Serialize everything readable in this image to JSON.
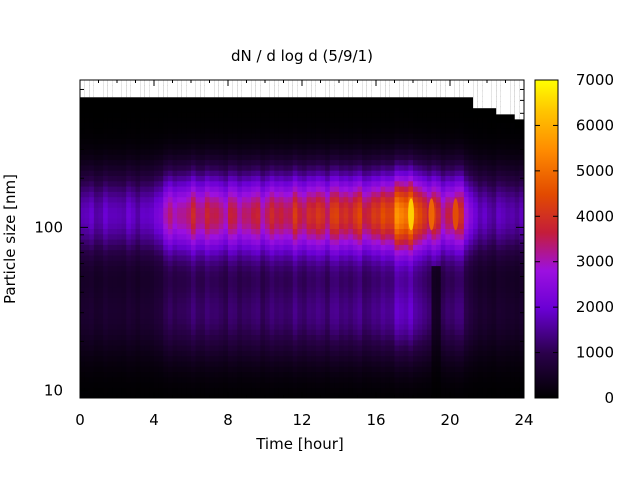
{
  "chart_data": {
    "type": "heatmap",
    "title": "dN / d log d (5/9/1)",
    "xlabel": "Time [hour]",
    "ylabel": "Particle size [nm]",
    "x_ticks": [
      0,
      4,
      8,
      12,
      16,
      20,
      24
    ],
    "y_ticks": [
      10,
      100
    ],
    "y_scale": "log",
    "xlim": [
      0,
      24
    ],
    "ylim": [
      9,
      800
    ],
    "colorbar": {
      "range": [
        0,
        7000
      ],
      "ticks": [
        0,
        1000,
        2000,
        3000,
        4000,
        5000,
        6000,
        7000
      ],
      "colormap": [
        "#000000",
        "#4b00a8",
        "#8a00ff",
        "#c23000",
        "#ff6f00",
        "#ffb300",
        "#ffff00"
      ]
    },
    "peak_mode_nm": 120,
    "peak_events": [
      {
        "hour": 17.9,
        "value": 6500
      },
      {
        "hour": 19.0,
        "value": 5000
      },
      {
        "hour": 20.3,
        "value": 4600
      }
    ],
    "mode_intensity": [
      {
        "hour": 0,
        "value": 2000
      },
      {
        "hour": 4,
        "value": 2100
      },
      {
        "hour": 4.5,
        "value": 3300
      },
      {
        "hour": 6.5,
        "value": 4100
      },
      {
        "hour": 8,
        "value": 3800
      },
      {
        "hour": 10,
        "value": 4000
      },
      {
        "hour": 12,
        "value": 4300
      },
      {
        "hour": 14,
        "value": 4600
      },
      {
        "hour": 16,
        "value": 4500
      },
      {
        "hour": 17.9,
        "value": 6500
      },
      {
        "hour": 18.5,
        "value": 4200
      },
      {
        "hour": 19.0,
        "value": 5000
      },
      {
        "hour": 19.6,
        "value": 3600
      },
      {
        "hour": 20.3,
        "value": 4600
      },
      {
        "hour": 21,
        "value": 3200
      },
      {
        "hour": 21.5,
        "value": 2000
      },
      {
        "hour": 24,
        "value": 1900
      }
    ]
  }
}
